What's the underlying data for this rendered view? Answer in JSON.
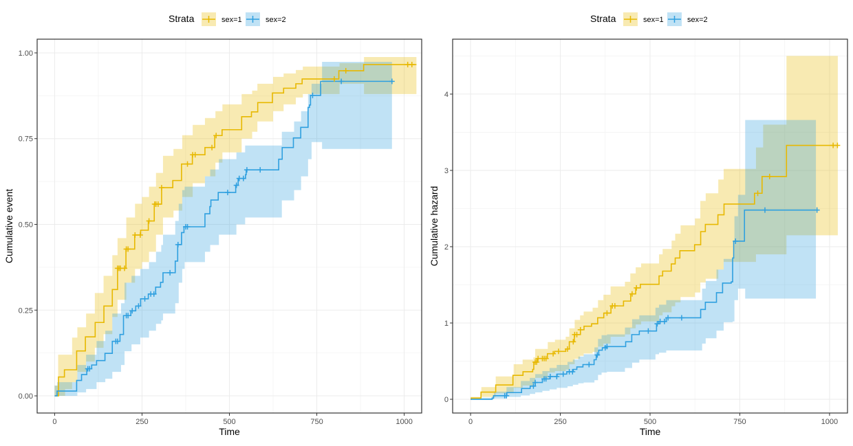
{
  "colors": {
    "sex1": "#E7B800",
    "sex2": "#2E9FDF"
  },
  "chart_data": [
    {
      "type": "line",
      "subtype": "step",
      "title": "",
      "xlabel": "Time",
      "ylabel": "Cumulative event",
      "xlim": [
        -50,
        1050
      ],
      "ylim": [
        -0.05,
        1.04
      ],
      "xticks": [
        0,
        250,
        500,
        750,
        1000
      ],
      "xtick_labels": [
        "0",
        "250",
        "500",
        "750",
        "1000"
      ],
      "yticks": [
        0,
        0.25,
        0.5,
        0.75,
        1.0
      ],
      "ytick_labels": [
        "0.00",
        "0.25",
        "0.50",
        "0.75",
        "1.00"
      ],
      "grid": true,
      "legend": {
        "title": "Strata",
        "position": "top",
        "entries": [
          "sex=1",
          "sex=2"
        ]
      },
      "series": [
        {
          "name": "sex=1",
          "color_key": "sex1",
          "x": [
            0,
            11,
            28,
            49,
            63,
            88,
            116,
            141,
            165,
            180,
            204,
            229,
            246,
            268,
            285,
            306,
            338,
            363,
            394,
            430,
            458,
            479,
            535,
            563,
            581,
            623,
            655,
            690,
            708,
            813,
            884,
            1035
          ],
          "y": [
            0,
            0.055,
            0.076,
            0.076,
            0.131,
            0.172,
            0.214,
            0.262,
            0.31,
            0.372,
            0.428,
            0.469,
            0.483,
            0.51,
            0.559,
            0.607,
            0.628,
            0.676,
            0.703,
            0.724,
            0.759,
            0.776,
            0.814,
            0.828,
            0.855,
            0.883,
            0.897,
            0.91,
            0.924,
            0.948,
            0.966,
            0.966
          ],
          "band": {
            "x": [
              0,
              10,
              30,
              50,
              65,
              90,
              115,
              140,
              165,
              180,
              205,
              230,
              250,
              270,
              290,
              310,
              340,
              365,
              395,
              430,
              460,
              480,
              535,
              565,
              580,
              625,
              655,
              690,
              710,
              815,
              885,
              1035
            ],
            "lo": [
              0,
              0,
              0.02,
              0.04,
              0.07,
              0.1,
              0.14,
              0.18,
              0.23,
              0.28,
              0.33,
              0.37,
              0.39,
              0.42,
              0.47,
              0.52,
              0.54,
              0.58,
              0.62,
              0.64,
              0.68,
              0.71,
              0.75,
              0.77,
              0.8,
              0.83,
              0.85,
              0.87,
              0.88,
              0.91,
              0.88,
              0.88
            ],
            "hi": [
              0.03,
              0.12,
              0.12,
              0.17,
              0.2,
              0.24,
              0.3,
              0.35,
              0.41,
              0.46,
              0.52,
              0.56,
              0.58,
              0.61,
              0.65,
              0.7,
              0.72,
              0.76,
              0.79,
              0.81,
              0.83,
              0.85,
              0.88,
              0.89,
              0.91,
              0.93,
              0.94,
              0.95,
              0.96,
              0.97,
              0.988,
              0.988
            ]
          },
          "censor": [
            180,
            184,
            188,
            200,
            205,
            210,
            230,
            245,
            270,
            286,
            290,
            296,
            306,
            380,
            395,
            402,
            450,
            462,
            800,
            833,
            1010,
            1022
          ]
        },
        {
          "name": "sex=2",
          "color_key": "sex2",
          "x": [
            0,
            7,
            63,
            77,
            92,
            106,
            120,
            144,
            165,
            187,
            197,
            218,
            232,
            246,
            268,
            289,
            303,
            310,
            345,
            352,
            363,
            370,
            430,
            444,
            447,
            468,
            518,
            525,
            546,
            548,
            641,
            651,
            683,
            704,
            725,
            729,
            732,
            761,
            965
          ],
          "y": [
            0,
            0.014,
            0.045,
            0.062,
            0.079,
            0.09,
            0.103,
            0.124,
            0.159,
            0.179,
            0.234,
            0.248,
            0.262,
            0.283,
            0.297,
            0.317,
            0.331,
            0.359,
            0.393,
            0.441,
            0.476,
            0.493,
            0.531,
            0.552,
            0.571,
            0.593,
            0.614,
            0.634,
            0.645,
            0.659,
            0.69,
            0.724,
            0.752,
            0.783,
            0.841,
            0.848,
            0.876,
            0.917,
            0.917
          ],
          "band": {
            "x": [
              0,
              7,
              65,
              90,
              120,
              145,
              165,
              190,
              200,
              220,
              245,
              270,
              290,
              305,
              310,
              345,
              355,
              365,
              372,
              430,
              445,
              470,
              520,
              545,
              650,
              685,
              705,
              725,
              735,
              765,
              965
            ],
            "lo": [
              0,
              0,
              0.01,
              0.02,
              0.04,
              0.05,
              0.07,
              0.09,
              0.13,
              0.15,
              0.17,
              0.19,
              0.21,
              0.22,
              0.24,
              0.27,
              0.33,
              0.37,
              0.39,
              0.42,
              0.44,
              0.47,
              0.5,
              0.52,
              0.57,
              0.6,
              0.64,
              0.69,
              0.74,
              0.72,
              0.72
            ],
            "hi": [
              0.03,
              0.04,
              0.09,
              0.12,
              0.16,
              0.19,
              0.24,
              0.27,
              0.33,
              0.35,
              0.37,
              0.39,
              0.42,
              0.44,
              0.47,
              0.51,
              0.56,
              0.6,
              0.61,
              0.64,
              0.66,
              0.69,
              0.71,
              0.73,
              0.77,
              0.8,
              0.83,
              0.88,
              0.91,
              0.974,
              0.974
            ]
          },
          "censor": [
            95,
            100,
            175,
            180,
            205,
            210,
            222,
            240,
            258,
            275,
            284,
            330,
            353,
            375,
            380,
            495,
            520,
            528,
            540,
            550,
            588,
            738,
            820,
            965
          ]
        }
      ]
    },
    {
      "type": "line",
      "subtype": "step",
      "title": "",
      "xlabel": "Time",
      "ylabel": "Cumulative hazard",
      "xlim": [
        -50,
        1050
      ],
      "ylim": [
        -0.18,
        4.72
      ],
      "xticks": [
        0,
        250,
        500,
        750,
        1000
      ],
      "xtick_labels": [
        "0",
        "250",
        "500",
        "750",
        "1000"
      ],
      "yticks": [
        0,
        1,
        2,
        3,
        4
      ],
      "ytick_labels": [
        "0",
        "1",
        "2",
        "3",
        "4"
      ],
      "grid": true,
      "legend": {
        "title": "Strata",
        "position": "top",
        "entries": [
          "sex=1",
          "sex=2"
        ]
      },
      "series": [
        {
          "name": "sex=1",
          "color_key": "sex1",
          "x": [
            0,
            2,
            29,
            70,
            118,
            146,
            173,
            176,
            186,
            214,
            234,
            265,
            275,
            289,
            306,
            316,
            337,
            354,
            371,
            391,
            426,
            446,
            460,
            473,
            525,
            535,
            559,
            570,
            583,
            624,
            641,
            654,
            689,
            706,
            791,
            812,
            880,
            1023
          ],
          "y": [
            0,
            0.016,
            0.094,
            0.188,
            0.314,
            0.361,
            0.392,
            0.487,
            0.534,
            0.597,
            0.628,
            0.659,
            0.754,
            0.848,
            0.911,
            0.958,
            0.989,
            1.068,
            1.13,
            1.224,
            1.287,
            1.381,
            1.46,
            1.507,
            1.617,
            1.68,
            1.774,
            1.852,
            1.947,
            2.025,
            2.198,
            2.292,
            2.418,
            2.559,
            2.7,
            2.92,
            3.328,
            3.328
          ],
          "band": {
            "x": [
              0,
              30,
              70,
              120,
              145,
              175,
              180,
              215,
              235,
              265,
              275,
              290,
              305,
              315,
              340,
              355,
              370,
              390,
              430,
              445,
              460,
              475,
              525,
              535,
              560,
              570,
              585,
              625,
              640,
              655,
              690,
              705,
              795,
              815,
              880,
              1020
            ],
            "lo": [
              0,
              0.03,
              0.08,
              0.15,
              0.18,
              0.2,
              0.28,
              0.35,
              0.37,
              0.39,
              0.46,
              0.53,
              0.57,
              0.6,
              0.62,
              0.69,
              0.73,
              0.82,
              0.85,
              0.93,
              0.98,
              1.02,
              1.1,
              1.14,
              1.22,
              1.27,
              1.34,
              1.4,
              1.53,
              1.58,
              1.7,
              1.8,
              1.9,
              1.9,
              2.15,
              2.15
            ],
            "hi": [
              0.03,
              0.16,
              0.3,
              0.46,
              0.52,
              0.55,
              0.66,
              0.75,
              0.78,
              0.82,
              0.93,
              1.04,
              1.1,
              1.15,
              1.2,
              1.3,
              1.37,
              1.48,
              1.54,
              1.65,
              1.73,
              1.78,
              1.9,
              1.97,
              2.08,
              2.17,
              2.28,
              2.37,
              2.6,
              2.7,
              2.88,
              3.02,
              3.3,
              3.6,
              4.5,
              4.5
            ]
          },
          "censor": [
            180,
            184,
            188,
            200,
            205,
            210,
            230,
            245,
            270,
            286,
            290,
            296,
            306,
            380,
            395,
            402,
            450,
            462,
            800,
            833,
            1010,
            1022
          ]
        },
        {
          "name": "sex=2",
          "color_key": "sex2",
          "x": [
            0,
            60,
            64,
            101,
            142,
            166,
            180,
            200,
            221,
            241,
            268,
            286,
            296,
            313,
            344,
            350,
            357,
            367,
            378,
            432,
            449,
            470,
            518,
            524,
            545,
            641,
            654,
            685,
            702,
            726,
            730,
            733,
            763,
            962
          ],
          "y": [
            0,
            0.016,
            0.047,
            0.088,
            0.141,
            0.173,
            0.22,
            0.267,
            0.298,
            0.33,
            0.361,
            0.392,
            0.424,
            0.455,
            0.518,
            0.581,
            0.644,
            0.675,
            0.691,
            0.754,
            0.848,
            0.895,
            0.989,
            1.02,
            1.068,
            1.177,
            1.272,
            1.397,
            1.523,
            1.539,
            1.852,
            2.072,
            2.48,
            2.48
          ],
          "band": {
            "x": [
              0,
              60,
              65,
              100,
              140,
              165,
              180,
              200,
              220,
              240,
              270,
              285,
              300,
              315,
              345,
              355,
              365,
              380,
              430,
              450,
              470,
              515,
              525,
              545,
              645,
              655,
              685,
              705,
              730,
              735,
              745,
              765,
              965
            ],
            "lo": [
              0,
              0,
              0.01,
              0.03,
              0.05,
              0.07,
              0.09,
              0.11,
              0.13,
              0.15,
              0.17,
              0.19,
              0.21,
              0.22,
              0.25,
              0.32,
              0.35,
              0.36,
              0.41,
              0.48,
              0.52,
              0.59,
              0.61,
              0.64,
              0.73,
              0.8,
              0.9,
              1.01,
              1.02,
              1.3,
              1.45,
              1.32,
              1.32
            ],
            "hi": [
              0.02,
              0.04,
              0.1,
              0.16,
              0.24,
              0.28,
              0.33,
              0.37,
              0.41,
              0.45,
              0.49,
              0.52,
              0.56,
              0.59,
              0.68,
              0.79,
              0.84,
              0.85,
              0.94,
              1.05,
              1.1,
              1.2,
              1.24,
              1.3,
              1.45,
              1.55,
              1.7,
              1.84,
              1.86,
              2.4,
              2.68,
              3.66,
              3.66
            ]
          },
          "censor": [
            95,
            100,
            175,
            180,
            205,
            210,
            222,
            240,
            258,
            275,
            284,
            330,
            353,
            375,
            380,
            495,
            520,
            528,
            540,
            550,
            588,
            738,
            820,
            965
          ]
        }
      ]
    }
  ]
}
